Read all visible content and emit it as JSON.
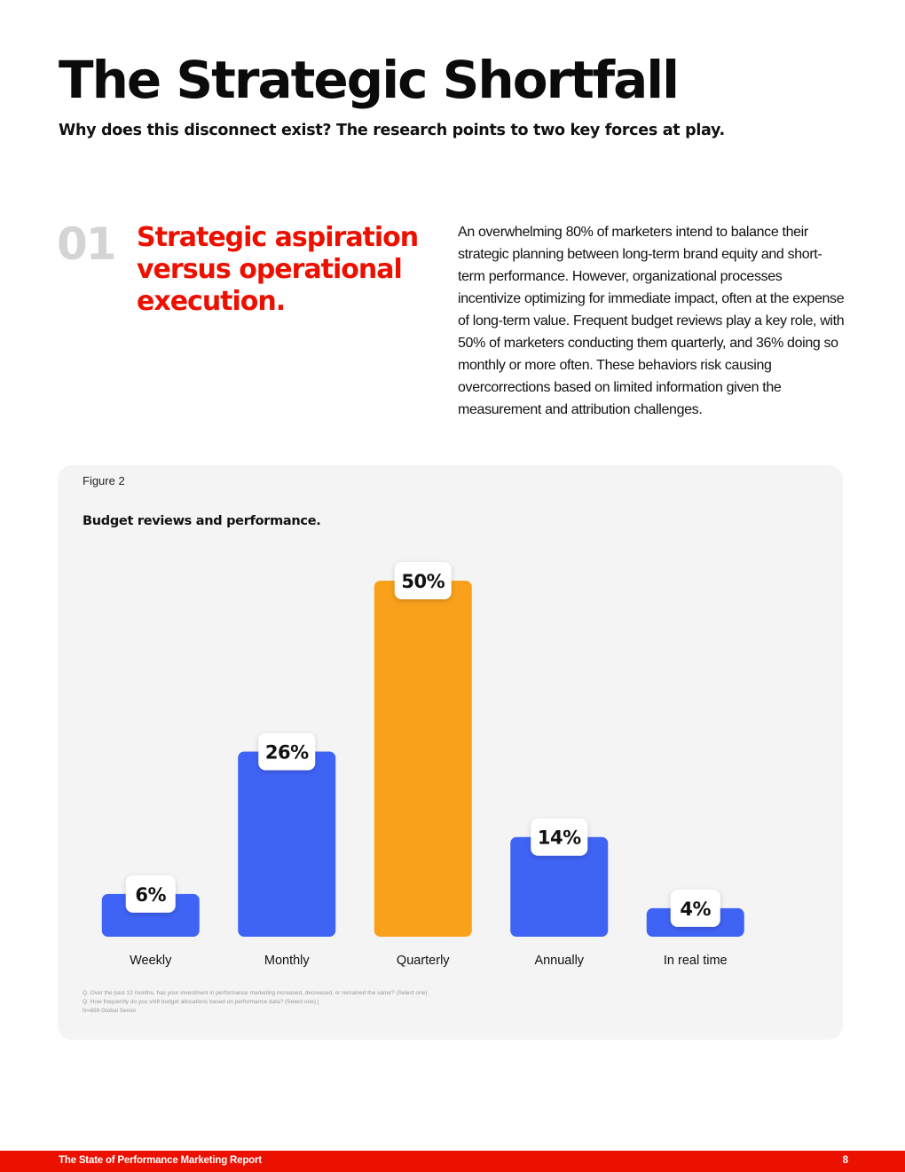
{
  "page": {
    "title": "The Strategic Shortfall",
    "subtitle": "Why does this disconnect exist? The research points to two key forces at play."
  },
  "section": {
    "number": "01",
    "heading": "Strategic aspiration versus operational execution.",
    "body": "An overwhelming 80% of marketers intend to balance their strategic planning between long-term brand equity and short-term performance. However, organizational processes incentivize optimizing for immediate impact, often at the expense of long-term value. Frequent budget reviews play a key role, with 50% of marketers conducting them quarterly, and 36% doing so monthly or more often. These behaviors risk causing overcorrections based on limited information given the measurement and attribution challenges."
  },
  "figure": {
    "label": "Figure 2",
    "title": "Budget reviews and performance.",
    "notes": [
      "Q. Over the past 12 months, has your investment in performance marketing increased, decreased, or remained the same? (Select one)",
      "Q. How frequently do you shift budget allocations based on performance data? (Select one) |",
      "N=869 Global Senior"
    ]
  },
  "chart_data": {
    "type": "bar",
    "categories": [
      "Weekly",
      "Monthly",
      "Quarterly",
      "Annually",
      "In real time"
    ],
    "values": [
      6,
      26,
      50,
      14,
      4
    ],
    "value_labels": [
      "6%",
      "26%",
      "50%",
      "14%",
      "4%"
    ],
    "highlight_index": 2,
    "ylim": [
      0,
      50
    ],
    "grid": false,
    "colors": {
      "bar": "#3f63f5",
      "highlight": "#f9a11b"
    }
  },
  "footer": {
    "report_title": "The State of Performance Marketing Report",
    "page_number": "8"
  }
}
